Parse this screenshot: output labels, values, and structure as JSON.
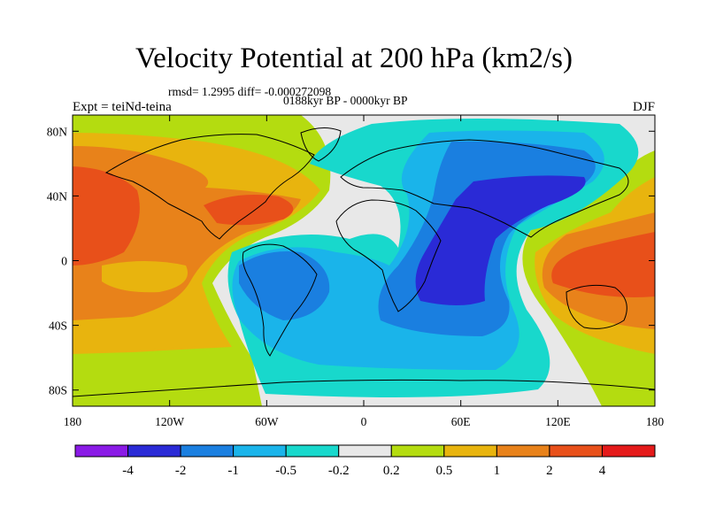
{
  "title": "Velocity Potential at 200 hPa (km2/s)",
  "stats": "rmsd= 1.2995 diff= -0.000272098",
  "period": "0188kyr BP - 0000kyr BP",
  "experiment": "Expt = teiNd-teina",
  "season": "DJF",
  "axes": {
    "x_ticks": [
      "180",
      "120W",
      "60W",
      "0",
      "60E",
      "120E",
      "180"
    ],
    "y_ticks": [
      "80N",
      "40N",
      "0",
      "40S",
      "80S"
    ],
    "lon_range": [
      -180,
      180
    ],
    "lat_range": [
      -90,
      90
    ]
  },
  "colorbar": {
    "labels": [
      "-4",
      "-2",
      "-1",
      "-0.5",
      "-0.2",
      "0.2",
      "0.5",
      "1",
      "2",
      "4"
    ],
    "colors": [
      "#8a1ae6",
      "#2a2ad6",
      "#1a7fe0",
      "#1ab4ea",
      "#18d8cc",
      "#e8e8e8",
      "#b4dc10",
      "#e8b40e",
      "#e8821a",
      "#e8501a",
      "#e41a1a"
    ]
  }
}
